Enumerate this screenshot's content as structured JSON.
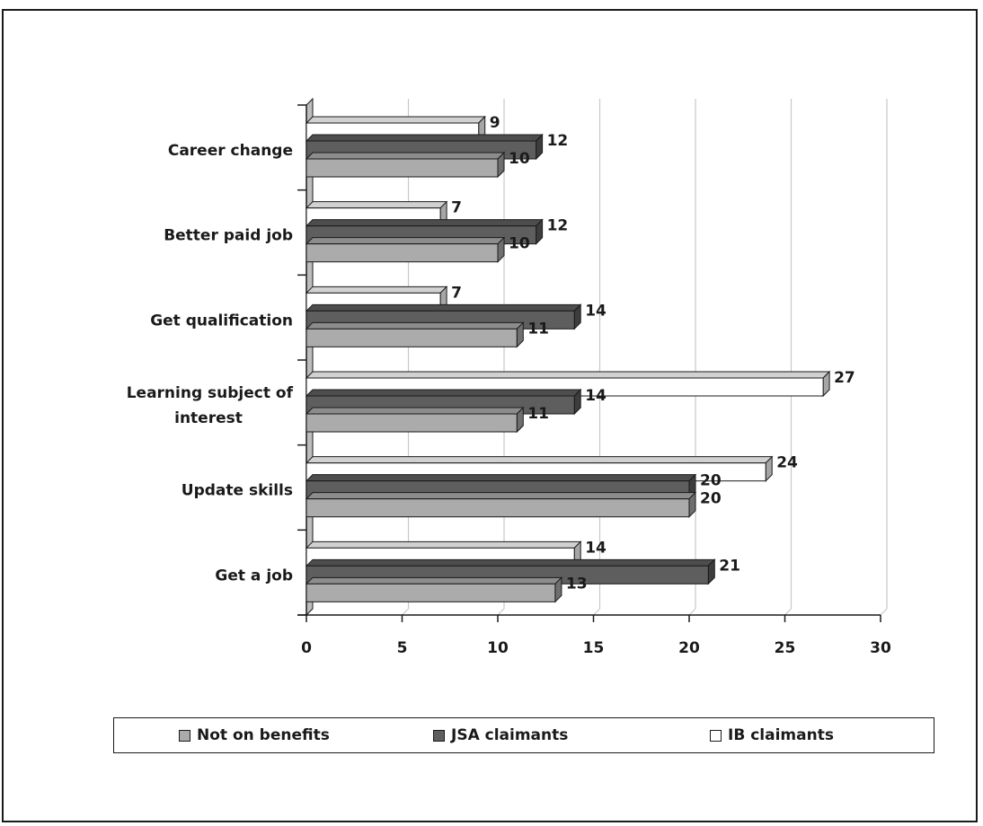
{
  "chart_data": {
    "type": "bar",
    "orientation": "horizontal",
    "categories": [
      "Get a job",
      "Update skills",
      "Learning subject of interest",
      "Get qualification",
      "Better paid job",
      "Career change"
    ],
    "category_label_lines": [
      [
        "Get a job"
      ],
      [
        "Update skills"
      ],
      [
        "Learning subject of",
        "interest"
      ],
      [
        "Get qualification"
      ],
      [
        "Better paid job"
      ],
      [
        "Career change"
      ]
    ],
    "series": [
      {
        "name": "Not on benefits",
        "color": "#ababab",
        "values": [
          13,
          20,
          11,
          11,
          10,
          10
        ],
        "value_labels": [
          "13",
          "20",
          "11",
          "11",
          "10",
          "10"
        ]
      },
      {
        "name": "JSA claimants",
        "color": "#5e5e5e",
        "values": [
          21,
          20,
          14,
          14,
          12,
          12
        ],
        "value_labels": [
          "21",
          "20",
          "14",
          "14",
          "12",
          "12"
        ]
      },
      {
        "name": "IB claimants",
        "color": "#ffffff",
        "values": [
          14,
          24,
          27,
          7,
          7,
          9
        ],
        "value_labels": [
          "14",
          "24",
          "27",
          "7",
          "7",
          "9"
        ]
      }
    ],
    "xlim": [
      0,
      30
    ],
    "xticks": [
      0,
      5,
      10,
      15,
      20,
      25,
      30
    ],
    "xtick_labels": [
      "0",
      "5",
      "10",
      "15",
      "20",
      "25",
      "30"
    ],
    "grid": true,
    "style": "3d",
    "legend_position": "bottom"
  }
}
